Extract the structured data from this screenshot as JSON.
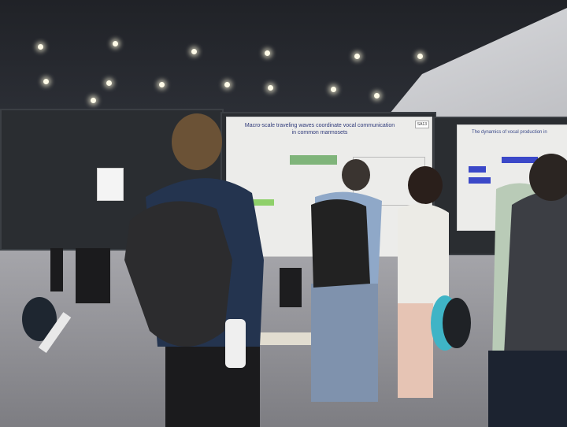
{
  "scene": {
    "description_type": "conference poster session photo",
    "posters": [
      {
        "title": "Macro-scale traveling waves coordinate vocal communication in common marmosets",
        "board_number": "SA13"
      },
      {
        "title": "The dynamics of vocal production in"
      }
    ],
    "colors": {
      "ceiling": "#24272d",
      "board": "#2a2d31",
      "floor": "#95959a",
      "poster": "#ececea"
    }
  }
}
